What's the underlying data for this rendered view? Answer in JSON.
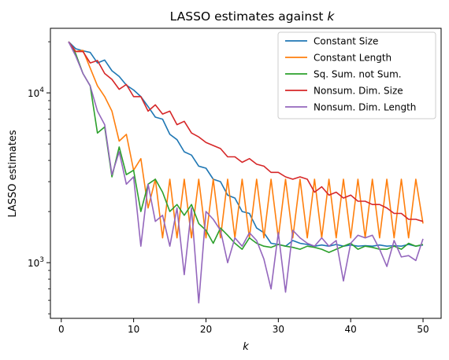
{
  "chart_data": {
    "type": "line",
    "title_main": "LASSO estimates against ",
    "title_var": "k",
    "xlabel": "k",
    "ylabel": "LASSO estimates",
    "x_scale": "linear",
    "y_scale": "log",
    "xlim": [
      -1.5,
      52.5
    ],
    "ylim": [
      470,
      24000
    ],
    "x_ticks": [
      0,
      10,
      20,
      30,
      40,
      50
    ],
    "x_tick_labels": [
      "0",
      "10",
      "20",
      "30",
      "40",
      "50"
    ],
    "y_major_ticks": [
      1000,
      10000
    ],
    "y_major_tick_labels": [
      {
        "base": "10",
        "exp": "3"
      },
      {
        "base": "10",
        "exp": "4"
      }
    ],
    "y_minor_ticks": [
      500,
      600,
      700,
      800,
      900,
      2000,
      3000,
      4000,
      5000,
      6000,
      7000,
      8000,
      9000,
      20000
    ],
    "grid": false,
    "legend_position": "top-right",
    "x": [
      1,
      2,
      3,
      4,
      5,
      6,
      7,
      8,
      9,
      10,
      11,
      12,
      13,
      14,
      15,
      16,
      17,
      18,
      19,
      20,
      21,
      22,
      23,
      24,
      25,
      26,
      27,
      28,
      29,
      30,
      31,
      32,
      33,
      34,
      35,
      36,
      37,
      38,
      39,
      40,
      41,
      42,
      43,
      44,
      45,
      46,
      47,
      48,
      49,
      50
    ],
    "series": [
      {
        "name": "Constant Size",
        "color": "#1f77b4",
        "values": [
          20000,
          18200,
          17700,
          17300,
          15000,
          15600,
          13500,
          12500,
          11100,
          10400,
          9500,
          8300,
          7200,
          7000,
          5700,
          5300,
          4500,
          4300,
          3700,
          3600,
          3100,
          3000,
          2500,
          2400,
          2000,
          1950,
          1600,
          1500,
          1300,
          1280,
          1250,
          1350,
          1300,
          1280,
          1250,
          1270,
          1250,
          1280,
          1250,
          1270,
          1250,
          1260,
          1250,
          1270,
          1250,
          1260,
          1250,
          1280,
          1250,
          1270
        ]
      },
      {
        "name": "Constant Length",
        "color": "#ff7f0e",
        "values": [
          20000,
          17500,
          17800,
          14000,
          11000,
          9500,
          7800,
          5200,
          5700,
          3500,
          4100,
          2100,
          3100,
          1400,
          3100,
          1400,
          3100,
          1400,
          3100,
          1400,
          3100,
          1400,
          3100,
          1400,
          3100,
          1400,
          3100,
          1400,
          3100,
          1400,
          3100,
          1400,
          3100,
          1400,
          3100,
          1400,
          3100,
          1400,
          3100,
          1400,
          3100,
          1400,
          3100,
          1400,
          3100,
          1400,
          3100,
          1400,
          3100,
          1700
        ]
      },
      {
        "name": "Sq. Sum. not Sum.",
        "color": "#2ca02c",
        "values": [
          20000,
          17000,
          13000,
          11000,
          5800,
          6300,
          3200,
          4800,
          3300,
          3500,
          2000,
          2900,
          3100,
          2600,
          2000,
          2200,
          1900,
          2200,
          1700,
          1550,
          1300,
          1600,
          1450,
          1300,
          1200,
          1400,
          1300,
          1250,
          1230,
          1280,
          1250,
          1230,
          1200,
          1250,
          1230,
          1200,
          1150,
          1200,
          1250,
          1300,
          1200,
          1250,
          1230,
          1200,
          1200,
          1250,
          1200,
          1300,
          1250,
          1280
        ]
      },
      {
        "name": "Nonsum. Dim. Size",
        "color": "#d62728",
        "values": [
          20000,
          17500,
          17500,
          15000,
          15500,
          13000,
          12000,
          10500,
          11200,
          9500,
          9500,
          7800,
          8500,
          7500,
          7800,
          6500,
          6800,
          5800,
          5500,
          5100,
          4900,
          4700,
          4200,
          4200,
          3900,
          4100,
          3800,
          3700,
          3400,
          3400,
          3200,
          3100,
          3200,
          3100,
          2600,
          2800,
          2500,
          2600,
          2400,
          2500,
          2300,
          2300,
          2200,
          2200,
          2100,
          1950,
          1950,
          1800,
          1800,
          1750
        ]
      },
      {
        "name": "Nonsum. Dim. Length",
        "color": "#9467bd",
        "values": [
          20000,
          16500,
          13000,
          11000,
          7800,
          6500,
          3300,
          4500,
          2900,
          3200,
          1250,
          2900,
          1750,
          1900,
          1250,
          2100,
          850,
          2100,
          580,
          2000,
          1800,
          1550,
          1000,
          1400,
          1250,
          1500,
          1350,
          1050,
          700,
          1500,
          670,
          1550,
          1400,
          1300,
          1250,
          1400,
          1250,
          1350,
          780,
          1300,
          1450,
          1400,
          1450,
          1200,
          950,
          1350,
          1080,
          1100,
          1030,
          1380
        ]
      }
    ]
  }
}
